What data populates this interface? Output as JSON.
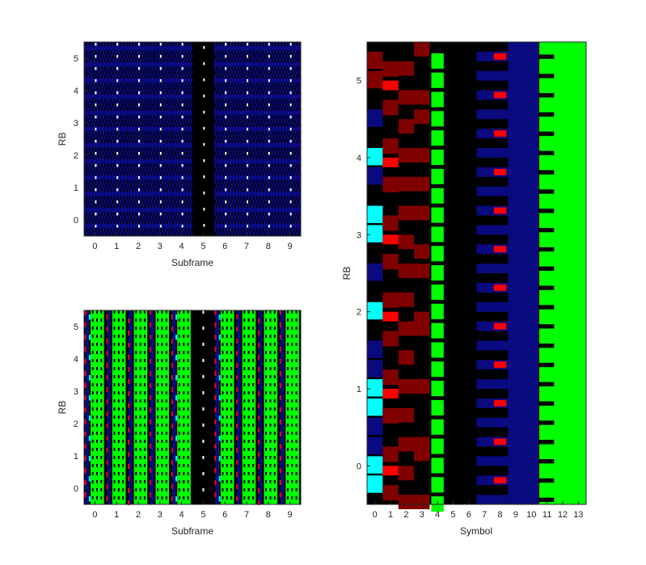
{
  "palette": {
    "black": "#000000",
    "blue": "#0a0a80",
    "green": "#00ff00",
    "red": "#ff0000",
    "darkred": "#800000",
    "cyan": "#00ffff",
    "white": "#ffffff",
    "frame": "#262626"
  },
  "chart_data": [
    {
      "id": "top-left",
      "type": "heatmap",
      "xlabel": "Subframe",
      "ylabel": "RB",
      "xticks": [
        "0",
        "1",
        "2",
        "3",
        "4",
        "5",
        "6",
        "7",
        "8",
        "9"
      ],
      "yticks": [
        "0",
        "1",
        "2",
        "3",
        "4",
        "5"
      ],
      "xlim": [
        -0.5,
        9.5
      ],
      "ylim": [
        -0.5,
        5.5
      ],
      "grid": false,
      "legend": "none"
    },
    {
      "id": "bottom-left",
      "type": "heatmap",
      "xlabel": "Subframe",
      "ylabel": "RB",
      "xticks": [
        "0",
        "1",
        "2",
        "3",
        "4",
        "5",
        "6",
        "7",
        "8",
        "9"
      ],
      "yticks": [
        "0",
        "1",
        "2",
        "3",
        "4",
        "5"
      ],
      "xlim": [
        -0.5,
        9.5
      ],
      "ylim": [
        -0.5,
        5.5
      ],
      "grid": false,
      "legend": "none"
    },
    {
      "id": "right",
      "type": "heatmap",
      "xlabel": "Symbol",
      "ylabel": "RB",
      "xticks": [
        "0",
        "1",
        "2",
        "3",
        "4",
        "5",
        "6",
        "7",
        "8",
        "9",
        "10",
        "11",
        "12",
        "13"
      ],
      "yticks": [
        "0",
        "1",
        "2",
        "3",
        "4",
        "5"
      ],
      "xlim": [
        -0.5,
        13.5
      ],
      "ylim": [
        -0.5,
        5.5
      ],
      "grid": false,
      "legend": "none"
    }
  ]
}
